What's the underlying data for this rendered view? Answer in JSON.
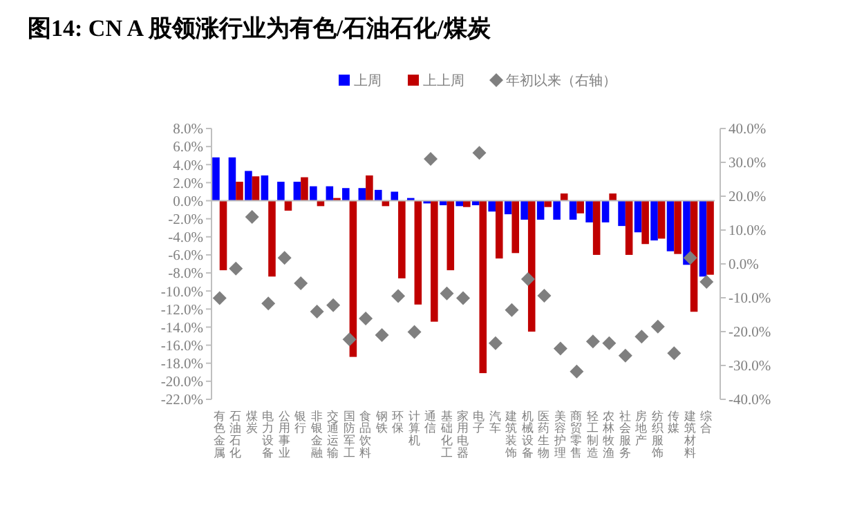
{
  "chart_data": {
    "type": "bar",
    "title": "图14:  CN A 股领涨行业为有色/石油石化/煤炭",
    "categories": [
      "有色金属",
      "石油石化",
      "煤炭",
      "电力设备",
      "公用事业",
      "银行",
      "非银金融",
      "交通运输",
      "国防军工",
      "食品饮料",
      "钢铁",
      "环保",
      "计算机",
      "通信",
      "基础化工",
      "家用电器",
      "电子",
      "汽车",
      "建筑装饰",
      "机械设备",
      "医药生物",
      "美容护理",
      "商贸零售",
      "轻工制造",
      "农林牧渔",
      "社会服务",
      "房地产",
      "纺织服饰",
      "传媒",
      "建筑材料",
      "综合"
    ],
    "series": [
      {
        "name": "上周",
        "color": "#0000ff",
        "values": [
          4.8,
          4.8,
          3.3,
          2.8,
          2.1,
          2.1,
          1.6,
          1.6,
          1.4,
          1.4,
          1.2,
          1.0,
          0.3,
          -0.3,
          -0.5,
          -0.6,
          -0.5,
          -1.2,
          -1.5,
          -2.1,
          -2.1,
          -2.1,
          -2.1,
          -2.4,
          -2.4,
          -2.8,
          -3.5,
          -4.4,
          -5.6,
          -7.1,
          -8.4
        ]
      },
      {
        "name": "上上周",
        "color": "#c00000",
        "values": [
          -7.7,
          2.1,
          2.7,
          -8.4,
          -1.1,
          2.6,
          -0.6,
          0.3,
          -17.3,
          2.8,
          -0.6,
          -8.6,
          -11.5,
          -13.4,
          -7.7,
          -0.7,
          -19.1,
          -6.4,
          -5.8,
          -14.5,
          -0.7,
          0.8,
          -1.4,
          -6.0,
          0.8,
          -6.0,
          -4.8,
          -4.2,
          -5.9,
          -12.3,
          -8.2
        ]
      },
      {
        "name": "年初以来（右轴）",
        "type": "scatter",
        "axis": "y2",
        "marker": "diamond",
        "color": "#7f7f7f",
        "values": [
          -10.1,
          -1.4,
          13.9,
          -11.7,
          1.8,
          -5.7,
          -14.1,
          -12.2,
          -22.3,
          -16.1,
          -21,
          -9.5,
          -20.1,
          31,
          -8.7,
          -10.1,
          32.8,
          -23.4,
          -13.6,
          -4.5,
          -9.4,
          -25,
          -31.8,
          -22.9,
          -23.4,
          -27.1,
          -21.5,
          -18.5,
          -26.4,
          1.8,
          -5.3
        ]
      }
    ],
    "ylim": [
      -22,
      8
    ],
    "yticks": [
      {
        "value": -22,
        "label": "-22.0%"
      },
      {
        "value": -20,
        "label": "-20.0%"
      },
      {
        "value": -18,
        "label": "-18.0%"
      },
      {
        "value": -16,
        "label": "-16.0%"
      },
      {
        "value": -14,
        "label": "-14.0%"
      },
      {
        "value": -12,
        "label": "-12.0%"
      },
      {
        "value": -10,
        "label": "-10.0%"
      },
      {
        "value": -8,
        "label": "-8.0%"
      },
      {
        "value": -6,
        "label": "-6.0%"
      },
      {
        "value": -4,
        "label": "-4.0%"
      },
      {
        "value": -2,
        "label": "-2.0%"
      },
      {
        "value": 0,
        "label": "0.0%"
      },
      {
        "value": 2,
        "label": "2.0%"
      },
      {
        "value": 4,
        "label": "4.0%"
      },
      {
        "value": 6,
        "label": "6.0%"
      },
      {
        "value": 8,
        "label": "8.0%"
      }
    ],
    "y2lim": [
      -40,
      40
    ],
    "y2ticks": [
      {
        "value": -40,
        "label": "-40.0%"
      },
      {
        "value": -30,
        "label": "-30.0%"
      },
      {
        "value": -20,
        "label": "-20.0%"
      },
      {
        "value": -10,
        "label": "-10.0%"
      },
      {
        "value": 0,
        "label": "0.0%"
      },
      {
        "value": 10,
        "label": "10.0%"
      },
      {
        "value": 20,
        "label": "20.0%"
      },
      {
        "value": 30,
        "label": "30.0%"
      },
      {
        "value": 40,
        "label": "40.0%"
      }
    ],
    "legend": "top"
  }
}
